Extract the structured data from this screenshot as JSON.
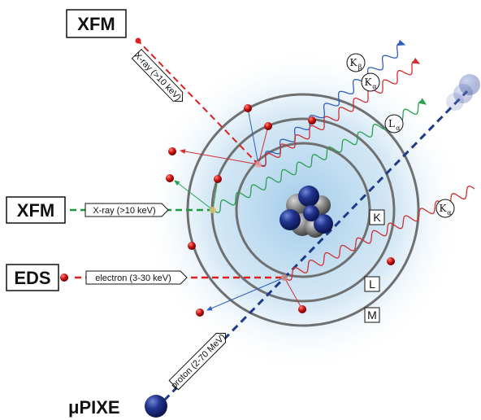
{
  "techniques": {
    "xfm_top": "XFM",
    "xfm_left": "XFM",
    "eds": "EDS",
    "upixe": "μPIXE"
  },
  "beams": {
    "xray_top": "X-ray (>10 keV)",
    "xray_left": "X-ray (>10 keV)",
    "electron": "electron (3-30 keV)",
    "proton": "proton (2-70 MeV)"
  },
  "shells": {
    "k": "K",
    "l": "L",
    "m": "M"
  },
  "emissions": {
    "k_beta": {
      "letter": "K",
      "sub": "β"
    },
    "k_alpha_top": {
      "letter": "K",
      "sub": "α"
    },
    "l_alpha": {
      "letter": "L",
      "sub": "α"
    },
    "k_alpha_right": {
      "letter": "K",
      "sub": "α"
    }
  },
  "colors": {
    "xfm_beam": "#e02020",
    "xfm_left_beam": "#1a9a3a",
    "eds_beam": "#e02020",
    "proton_beam": "#1e3a8a",
    "electron_dot": "#c41212",
    "orbit": "#707070",
    "nucleus_proton": "#1e2f8f",
    "nucleus_neutron": "#8a8a8a",
    "halo": "#bcd9ee",
    "wave_blue": "#3060c0",
    "wave_red": "#d03030",
    "wave_green": "#2aa050"
  }
}
